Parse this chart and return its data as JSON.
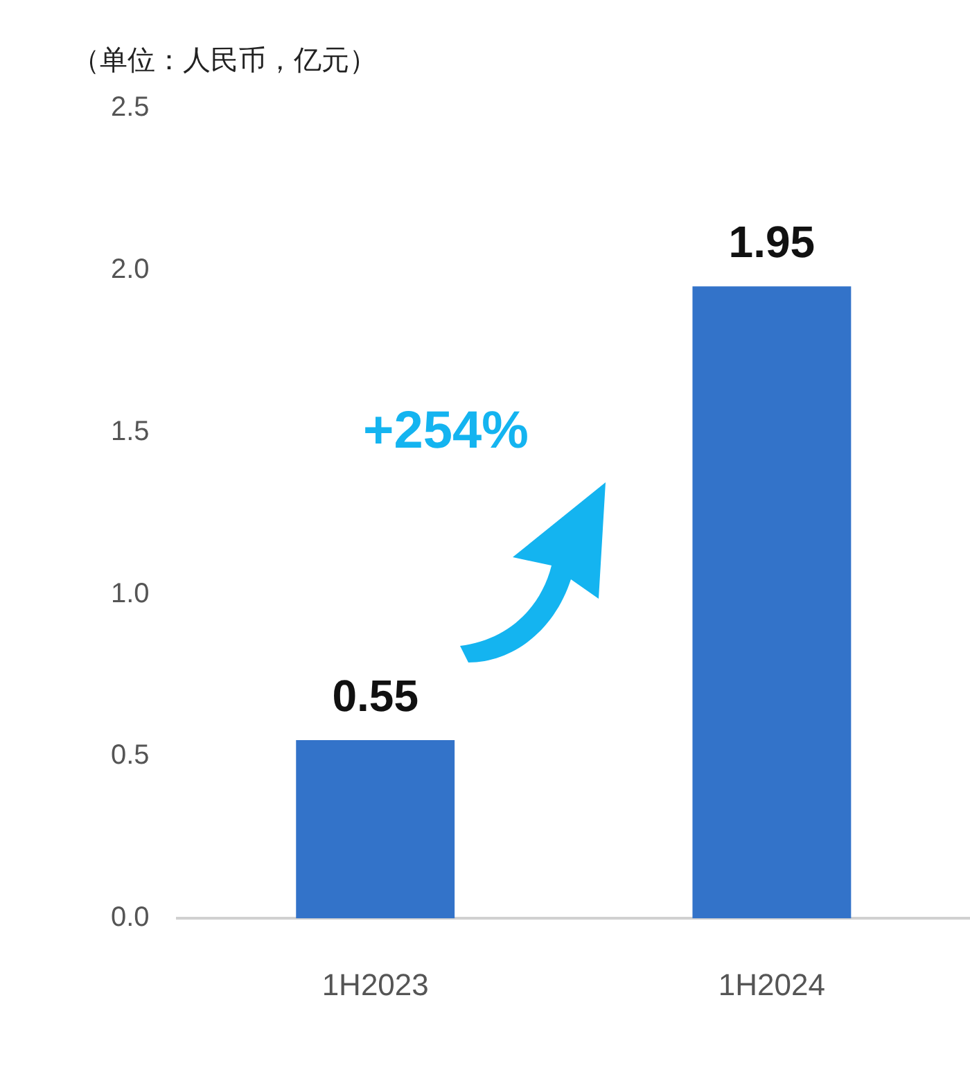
{
  "chart_data": {
    "type": "bar",
    "title": "（单位：人民币，亿元）",
    "categories": [
      "1H2023",
      "1H2024"
    ],
    "values": [
      0.55,
      1.95
    ],
    "color": "#3373c9",
    "ylim": [
      0,
      2.5
    ],
    "yticks": [
      {
        "value": 0,
        "label": "0.0"
      },
      0.5,
      {
        "value": 1,
        "label": "1.0"
      },
      1.5,
      {
        "value": 2,
        "label": "2.0"
      },
      2.5
    ],
    "data_labels": true,
    "grid": false,
    "legend": false,
    "annotations": [
      "+254%"
    ]
  }
}
